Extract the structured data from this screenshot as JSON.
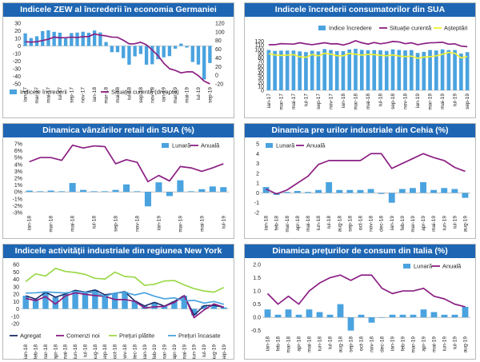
{
  "colors": {
    "title_bg": "#1e66b3",
    "bar": "#4aa3df",
    "line_purple": "#8b1f83",
    "line_yellow": "#f2ef2f",
    "line_dark_blue": "#1b2d6b",
    "line_green": "#9cd94a",
    "line_light_blue": "#4aa3df"
  },
  "chart_data": [
    {
      "id": "zew",
      "type": "bar",
      "title": "Indicele ZEW al încrederii în economia Germaniei",
      "categories": [
        "ian-17",
        "feb-17",
        "mar-17",
        "apr-17",
        "mai-17",
        "iun-17",
        "iul-17",
        "aug-17",
        "sep-17",
        "oct-17",
        "nov-17",
        "dec-17",
        "ian-18",
        "feb-18",
        "mar-18",
        "apr-18",
        "mai-18",
        "iun-18",
        "iul-18",
        "aug-18",
        "sep-18",
        "oct-18",
        "nov-18",
        "dec-18",
        "ian-19",
        "feb-19",
        "mar-19",
        "apr-19",
        "mai-19",
        "iun-19",
        "iul-19",
        "aug-19",
        "sep-19"
      ],
      "tick_labels": [
        "ian-17",
        "mar-17",
        "mai-17",
        "iul-17",
        "sep-17",
        "nov-17",
        "ian-18",
        "mar-18",
        "mai-18",
        "iul-18",
        "sep-18",
        "nov-18",
        "ian-19",
        "mar-19",
        "mai-19",
        "iul-19",
        "sep-19"
      ],
      "tick_every": 2,
      "bar_series": {
        "name": "Indicele încrederii",
        "axis": "left",
        "values": [
          16.6,
          10.4,
          12.8,
          19.5,
          20.6,
          18.6,
          17.5,
          10.0,
          17.0,
          17.6,
          18.7,
          17.4,
          20.4,
          17.8,
          5.1,
          -8.2,
          -8.2,
          -16.1,
          -24.7,
          -13.7,
          -10.6,
          -24.7,
          -24.1,
          -17.5,
          -15.0,
          -13.4,
          -3.6,
          3.1,
          -2.1,
          -21.1,
          -24.5,
          -44.1,
          -22.5
        ]
      },
      "line_series": [
        {
          "name": "Situația curentă (dreapta)",
          "axis": "right",
          "color": "#8b1f83",
          "values": [
            77.3,
            76.4,
            77.3,
            80.1,
            83.0,
            88.0,
            86.4,
            86.7,
            87.9,
            87.0,
            88.8,
            89.3,
            95.2,
            92.3,
            90.7,
            87.9,
            87.4,
            80.6,
            72.4,
            72.6,
            76.0,
            70.1,
            58.2,
            45.3,
            27.6,
            15.0,
            11.1,
            5.5,
            7.8,
            7.8,
            -1.1,
            -13.5,
            -19.9
          ]
        }
      ],
      "y_left": {
        "min": -50,
        "max": 30,
        "ticks": [
          30,
          20,
          10,
          0,
          -10,
          -20,
          -30,
          -40,
          -50
        ]
      },
      "y_right": {
        "min": -20,
        "max": 120,
        "ticks": [
          120,
          100,
          80,
          60,
          40,
          20,
          0,
          -20
        ]
      },
      "legend": {
        "position": "bottom-left",
        "entries": [
          "Indicele încrederii",
          "Situația curentă (dreapta)"
        ]
      }
    },
    {
      "id": "usa_confidence",
      "type": "bar",
      "title": "Indicele încrederii consumatorilor din SUA",
      "categories": [
        "ian-17",
        "feb-17",
        "mar-17",
        "apr-17",
        "mai-17",
        "iun-17",
        "iul-17",
        "aug-17",
        "sep-17",
        "oct-17",
        "nov-17",
        "dec-17",
        "ian-18",
        "feb-18",
        "mar-18",
        "apr-18",
        "mai-18",
        "iun-18",
        "iul-18",
        "aug-18",
        "sep-18",
        "oct-18",
        "nov-18",
        "dec-18",
        "ian-19",
        "feb-19",
        "mar-19",
        "apr-19",
        "mai-19",
        "iun-19",
        "iul-19",
        "aug-19",
        "sep-19"
      ],
      "tick_labels": [
        "ian-17",
        "mar-17",
        "mai-17",
        "iul-17",
        "sep-17",
        "nov-17",
        "ian-18",
        "mar-18",
        "mai-18",
        "iul-18",
        "sep-18",
        "nov-18",
        "ian-19",
        "mar-19",
        "mai-19",
        "iul-19",
        "sep-19"
      ],
      "tick_every": 2,
      "bar_series": {
        "name": "Indice încredere",
        "axis": "left",
        "values": [
          98.5,
          96.3,
          96.9,
          97.0,
          97.1,
          95.1,
          93.4,
          96.8,
          95.1,
          100.7,
          98.5,
          95.9,
          95.7,
          99.7,
          101.4,
          98.8,
          98.0,
          98.2,
          97.9,
          96.2,
          100.1,
          98.6,
          97.5,
          98.3,
          91.2,
          93.8,
          98.4,
          97.2,
          100.0,
          98.2,
          98.4,
          89.8,
          93.2
        ]
      },
      "line_series": [
        {
          "name": "Situație curentă",
          "axis": "left",
          "color": "#8b1f83",
          "values": [
            111.3,
            111.5,
            114.0,
            113.4,
            112.9,
            116.2,
            113.3,
            111.4,
            113.8,
            116.2,
            113.5,
            113.8,
            110.7,
            114.9,
            121.2,
            116.2,
            112.8,
            116.9,
            113.6,
            115.9,
            119.4,
            118.3,
            113.9,
            116.2,
            111.4,
            114.2,
            116.1,
            116.6,
            117.5,
            112.7,
            113.5,
            108.0,
            106.7
          ]
        },
        {
          "name": "Așteptări",
          "axis": "left",
          "color": "#f2ef2f",
          "values": [
            89.3,
            86.5,
            85.2,
            86.1,
            87.3,
            81.8,
            80.7,
            87.6,
            84.2,
            90.5,
            88.2,
            84.7,
            84.3,
            90.1,
            88.2,
            86.0,
            87.8,
            87.3,
            85.3,
            84.5,
            86.6,
            83.9,
            82.4,
            83.5,
            78.3,
            81.3,
            82.1,
            84.3,
            88.0,
            92.6,
            90.4,
            79.3,
            82.8
          ]
        }
      ],
      "y_left": {
        "min": 0,
        "max": 125,
        "ticks": [
          120,
          110,
          100,
          90,
          80,
          70,
          60,
          50,
          40,
          30,
          20,
          10,
          0
        ]
      },
      "legend": {
        "position": "top-right",
        "entries": [
          "Indice încredere",
          "Situație curentă",
          "Așteptări"
        ]
      }
    },
    {
      "id": "usa_retail",
      "type": "bar",
      "title": "Dinamica vânzărilor retail din SUA (%)",
      "categories": [
        "ian-18",
        "feb-18",
        "mar-18",
        "apr-18",
        "mai-18",
        "iun-18",
        "iul-18",
        "aug-18",
        "sep-18",
        "oct-18",
        "nov-18",
        "dec-18",
        "ian-19",
        "feb-19",
        "mar-19",
        "apr-19",
        "mai-19",
        "iun-19",
        "iul-19"
      ],
      "tick_labels": [
        "ian-18",
        "mar-18",
        "mai-18",
        "iul-18",
        "sep-18",
        "nov-18",
        "ian-19",
        "mar-19",
        "mai-19",
        "iul-19"
      ],
      "tick_every": 2,
      "bar_series": {
        "name": "Lunară",
        "axis": "left",
        "values": [
          0.2,
          0.1,
          0.2,
          0.1,
          1.3,
          0.3,
          0.1,
          0.1,
          0.3,
          1.1,
          0.1,
          -2.1,
          1.4,
          -0.6,
          1.7,
          0.1,
          0.4,
          0.8,
          0.7
        ]
      },
      "line_series": [
        {
          "name": "Anuală",
          "axis": "left",
          "color": "#8b1f83",
          "values": [
            4.4,
            5.0,
            5.0,
            4.6,
            6.8,
            6.4,
            6.7,
            6.6,
            4.1,
            4.7,
            4.3,
            1.5,
            2.4,
            1.6,
            3.7,
            3.5,
            3.0,
            3.5,
            4.1
          ]
        }
      ],
      "y_left": {
        "min": -3,
        "max": 7,
        "ticks": [
          7,
          6,
          5,
          4,
          3,
          2,
          1,
          0,
          -1,
          -2,
          -3
        ],
        "suffix": "%"
      },
      "legend": {
        "position": "top-right",
        "entries": [
          "Lunară",
          "Anuală"
        ]
      }
    },
    {
      "id": "cz_industrial",
      "type": "bar",
      "title": "Dinamica pre  urilor industriale din Cehia (%)",
      "categories": [
        "ian-18",
        "feb-18",
        "mar-18",
        "apr-18",
        "mai-18",
        "iun-18",
        "iul-18",
        "aug-18",
        "sep-18",
        "oct-18",
        "nov-18",
        "dec-18",
        "ian-19",
        "feb-19",
        "mar-19",
        "apr-19",
        "mai-19",
        "iun-19",
        "iul-19",
        "aug-19"
      ],
      "tick_labels": [
        "ian-18",
        "feb-18",
        "mar-18",
        "apr-18",
        "mai-18",
        "iun-18",
        "iul-18",
        "aug-18",
        "sep-18",
        "oct-18",
        "nov-18",
        "dec-18",
        "ian-19",
        "feb-19",
        "mar-19",
        "apr-19",
        "mai-19",
        "iun-19",
        "iul-19",
        "aug-19"
      ],
      "tick_every": 1,
      "bar_series": {
        "name": "Lunară",
        "axis": "left",
        "values": [
          0.6,
          -0.2,
          0.1,
          0.2,
          0.1,
          0.3,
          1.1,
          0.3,
          0.3,
          0.3,
          0.4,
          -0.1,
          -1.0,
          0.4,
          0.5,
          1.1,
          0.3,
          0.5,
          0.4,
          -0.5
        ]
      },
      "line_series": [
        {
          "name": "Anuală",
          "axis": "left",
          "color": "#8b1f83",
          "values": [
            0.4,
            -0.1,
            0.3,
            1.0,
            1.7,
            2.9,
            3.3,
            3.3,
            3.3,
            3.3,
            4.0,
            4.0,
            2.5,
            3.0,
            3.5,
            4.0,
            3.6,
            3.3,
            2.6,
            2.2
          ]
        }
      ],
      "y_left": {
        "min": -2,
        "max": 5,
        "ticks": [
          5,
          4,
          3,
          2,
          1,
          0,
          -1,
          -2
        ]
      },
      "legend": {
        "position": "top-left",
        "entries": [
          "Lunară",
          "Anuală"
        ]
      }
    },
    {
      "id": "ny_activity",
      "type": "line",
      "title": "Indicele activității industriale din regiunea New York",
      "categories": [
        "ian-18",
        "feb-18",
        "mar-18",
        "apr-18",
        "mai-18",
        "iun-18",
        "iul-18",
        "aug-18",
        "sep-18",
        "oct-18",
        "nov-18",
        "dec-18",
        "ian-19",
        "feb-19",
        "mar-19",
        "apr-19",
        "mai-19",
        "iun-19",
        "iul-19",
        "aug-19",
        "sep-19"
      ],
      "tick_labels": [
        "ian-18",
        "feb-18",
        "mar-18",
        "apr-18",
        "mai-18",
        "iun-18",
        "iul-18",
        "aug-18",
        "sep-18",
        "oct-18",
        "nov-18",
        "dec-18",
        "ian-19",
        "feb-19",
        "mar-19",
        "apr-19",
        "mai-19",
        "iun-19",
        "iul-19",
        "aug-19",
        "sep-19"
      ],
      "tick_every": 1,
      "bar_series": {
        "name": "Agregat",
        "axis": "left",
        "values": [
          17.7,
          13.1,
          22.5,
          15.8,
          20.1,
          25.0,
          22.6,
          25.6,
          19.0,
          21.1,
          23.3,
          10.9,
          3.9,
          8.8,
          3.7,
          10.1,
          17.8,
          -8.6,
          4.3,
          4.8,
          2.0
        ]
      },
      "line_series": [
        {
          "name": "Comenzi noi",
          "axis": "left",
          "color": "#8b1f83",
          "values": [
            14.2,
            11.0,
            16.6,
            6.5,
            17.5,
            21.7,
            19.7,
            18.0,
            16.9,
            12.6,
            12.6,
            10.2,
            1.3,
            2.7,
            3.4,
            8.7,
            17.9,
            -12.0,
            -1.5,
            6.7,
            2.2
          ]
        },
        {
          "name": "Prețuri plătite",
          "axis": "left",
          "color": "#9cd94a",
          "values": [
            37.0,
            47.4,
            44.4,
            54.8,
            50.6,
            49.2,
            46.6,
            41.3,
            40.4,
            49.7,
            43.8,
            42.9,
            31.8,
            33.3,
            37.7,
            38.3,
            32.4,
            27.4,
            24.2,
            22.6,
            28.9
          ]
        },
        {
          "name": "Prețuri încasate",
          "axis": "left",
          "color": "#4aa3df",
          "values": [
            21.3,
            21.7,
            23.0,
            22.2,
            21.5,
            23.6,
            22.3,
            21.8,
            16.9,
            21.4,
            22.3,
            18.8,
            21.8,
            17.1,
            13.6,
            14.9,
            10.7,
            11.5,
            7.8,
            9.9,
            6.1
          ]
        }
      ],
      "y_left": {
        "min": -20,
        "max": 60,
        "ticks": [
          60,
          50,
          40,
          30,
          20,
          10,
          0,
          -10,
          -20
        ]
      },
      "legend": {
        "position": "bottom",
        "entries": [
          "Agregat",
          "Comenzi noi",
          "Prețuri plătite",
          "Prețuri încasate"
        ]
      }
    },
    {
      "id": "it_cpi",
      "type": "bar",
      "title": "Dinamica prețurilor de consum din Italia (%)",
      "categories": [
        "ian-18",
        "feb-18",
        "mar-18",
        "apr-18",
        "mai-18",
        "iun-18",
        "iul-18",
        "aug-18",
        "sep-18",
        "oct-18",
        "nov-18",
        "dec-18",
        "ian-19",
        "feb-19",
        "mar-19",
        "apr-19",
        "mai-19",
        "iun-19",
        "iul-19",
        "aug-19"
      ],
      "tick_labels": [
        "ian-18",
        "feb-18",
        "mar-18",
        "apr-18",
        "mai-18",
        "iun-18",
        "iul-18",
        "aug-18",
        "sep-18",
        "oct-18",
        "nov-18",
        "dec-18",
        "ian-19",
        "feb-19",
        "mar-19",
        "apr-19",
        "mai-19",
        "iun-19",
        "iul-19",
        "aug-19"
      ],
      "tick_every": 1,
      "bar_series": {
        "name": "Lunară",
        "axis": "left",
        "values": [
          0.3,
          0.1,
          0.3,
          0.1,
          0.3,
          0.2,
          0.1,
          0.5,
          -0.5,
          0.1,
          -0.2,
          0.0,
          0.1,
          0.1,
          0.1,
          0.3,
          0.2,
          0.1,
          0.1,
          0.4
        ]
      },
      "line_series": [
        {
          "name": "Anuală",
          "axis": "left",
          "color": "#8b1f83",
          "values": [
            0.9,
            0.5,
            0.8,
            0.5,
            1.0,
            1.3,
            1.5,
            1.6,
            1.4,
            1.6,
            1.6,
            1.1,
            0.9,
            1.0,
            1.0,
            1.1,
            0.8,
            0.7,
            0.5,
            0.4
          ]
        }
      ],
      "y_left": {
        "min": -0.6,
        "max": 2.0,
        "ticks": [
          2.0,
          1.5,
          1.0,
          0.5,
          0.0,
          -0.5
        ],
        "decimals": 1
      },
      "legend": {
        "position": "top-right",
        "entries": [
          "Lunară",
          "Anuală"
        ]
      }
    }
  ]
}
